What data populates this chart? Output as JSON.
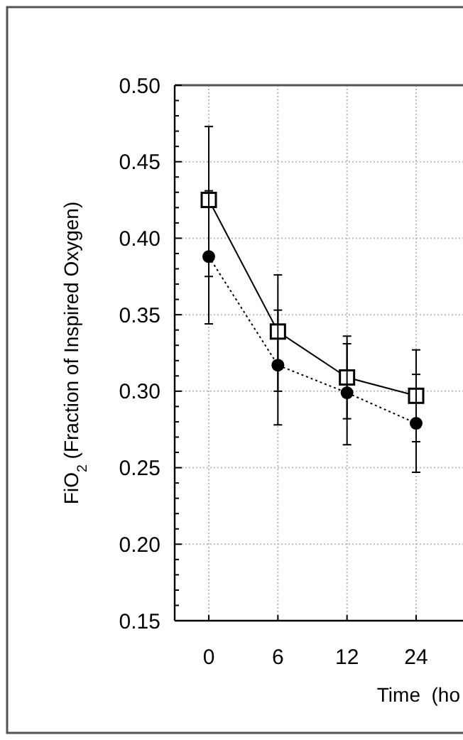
{
  "chart_data": {
    "type": "line",
    "ylabel": "FiO$_{2}$  (Fraction of Inspired Oxygen)",
    "xlabel": "Time  (ho",
    "categories": [
      "0",
      "6",
      "12",
      "24"
    ],
    "series": [
      {
        "color": "#000000",
        "marker": "square",
        "line_style": "solid",
        "values": [
          0.425,
          0.339,
          0.309,
          0.297
        ],
        "errors": [
          [
            0.375,
            0.473
          ],
          [
            0.3,
            0.376
          ],
          [
            0.282,
            0.336
          ],
          [
            0.267,
            0.327
          ]
        ]
      },
      {
        "color": "#000000",
        "marker": "circle",
        "line_style": "dotted",
        "values": [
          0.388,
          0.317,
          0.299,
          0.279
        ],
        "errors": [
          [
            0.344,
            0.431
          ],
          [
            0.278,
            0.353
          ],
          [
            0.265,
            0.331
          ],
          [
            0.247,
            0.311
          ]
        ]
      }
    ],
    "ylim": [
      0.15,
      0.5
    ],
    "yticks": [
      {
        "value": 0.15,
        "label": "0.15"
      },
      {
        "value": 0.16,
        "label": null
      },
      {
        "value": 0.17,
        "label": null
      },
      {
        "value": 0.18,
        "label": null
      },
      {
        "value": 0.19,
        "label": null
      },
      {
        "value": 0.2,
        "label": "0.20"
      },
      {
        "value": 0.21,
        "label": null
      },
      {
        "value": 0.22,
        "label": null
      },
      {
        "value": 0.23,
        "label": null
      },
      {
        "value": 0.24,
        "label": null
      },
      {
        "value": 0.25,
        "label": "0.25"
      },
      {
        "value": 0.26,
        "label": null
      },
      {
        "value": 0.27,
        "label": null
      },
      {
        "value": 0.28,
        "label": null
      },
      {
        "value": 0.29,
        "label": null
      },
      {
        "value": 0.3,
        "label": "0.30"
      },
      {
        "value": 0.31,
        "label": null
      },
      {
        "value": 0.32,
        "label": null
      },
      {
        "value": 0.33,
        "label": null
      },
      {
        "value": 0.34,
        "label": null
      },
      {
        "value": 0.35,
        "label": "0.35"
      },
      {
        "value": 0.36,
        "label": null
      },
      {
        "value": 0.37,
        "label": null
      },
      {
        "value": 0.38,
        "label": null
      },
      {
        "value": 0.39,
        "label": null
      },
      {
        "value": 0.4,
        "label": "0.40"
      },
      {
        "value": 0.41,
        "label": null
      },
      {
        "value": 0.42,
        "label": null
      },
      {
        "value": 0.43,
        "label": null
      },
      {
        "value": 0.44,
        "label": null
      },
      {
        "value": 0.45,
        "label": "0.45"
      },
      {
        "value": 0.46,
        "label": null
      },
      {
        "value": 0.47,
        "label": null
      },
      {
        "value": 0.48,
        "label": null
      },
      {
        "value": 0.49,
        "label": null
      },
      {
        "value": 0.5,
        "label": "0.50"
      }
    ],
    "grid": true
  }
}
